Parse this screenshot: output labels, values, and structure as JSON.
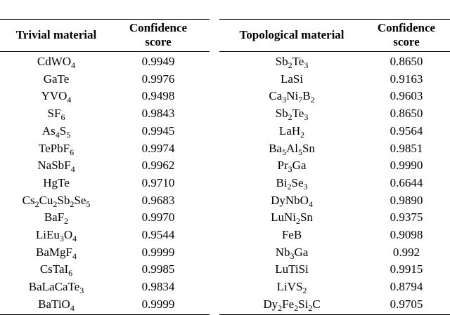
{
  "tables": [
    {
      "headers": [
        "Trivial material",
        "Confidence score"
      ],
      "rows": [
        [
          "CdWO4",
          "0.9949"
        ],
        [
          "GaTe",
          "0.9976"
        ],
        [
          "YVO4",
          "0.9498"
        ],
        [
          "SF6",
          "0.9843"
        ],
        [
          "As4S5",
          "0.9945"
        ],
        [
          "TePbF6",
          "0.9974"
        ],
        [
          "NaSbF4",
          "0.9962"
        ],
        [
          "HgTe",
          "0.9710"
        ],
        [
          "Cs2Cu2Sb2Se5",
          "0.9683"
        ],
        [
          "BaF2",
          "0.9970"
        ],
        [
          "LiEu3O4",
          "0.9544"
        ],
        [
          "BaMgF4",
          "0.9999"
        ],
        [
          "CsTaI6",
          "0.9985"
        ],
        [
          "BaLaCaTe3",
          "0.9834"
        ],
        [
          "BaTiO4",
          "0.9999"
        ]
      ]
    },
    {
      "headers": [
        "Topological material",
        "Confidence score"
      ],
      "rows": [
        [
          "Sb2Te3",
          "0.8650"
        ],
        [
          "LaSi",
          "0.9163"
        ],
        [
          "Ca3Ni7B2",
          "0.9603"
        ],
        [
          "Sb2Te3",
          "0.8650"
        ],
        [
          "LaH2",
          "0.9564"
        ],
        [
          "Ba5Al5Sn",
          "0.9851"
        ],
        [
          "Pr3Ga",
          "0.9990"
        ],
        [
          "Bi2Se3",
          "0.6644"
        ],
        [
          "DyNbO4",
          "0.9890"
        ],
        [
          "LuNi2Sn",
          "0.9375"
        ],
        [
          "FeB",
          "0.9098"
        ],
        [
          "Nb3Ga",
          "0.992"
        ],
        [
          "LuTiSi",
          "0.9915"
        ],
        [
          "LiVS2",
          "0.8794"
        ],
        [
          "Dy2Fe2Si2C",
          "0.9705"
        ]
      ]
    }
  ]
}
